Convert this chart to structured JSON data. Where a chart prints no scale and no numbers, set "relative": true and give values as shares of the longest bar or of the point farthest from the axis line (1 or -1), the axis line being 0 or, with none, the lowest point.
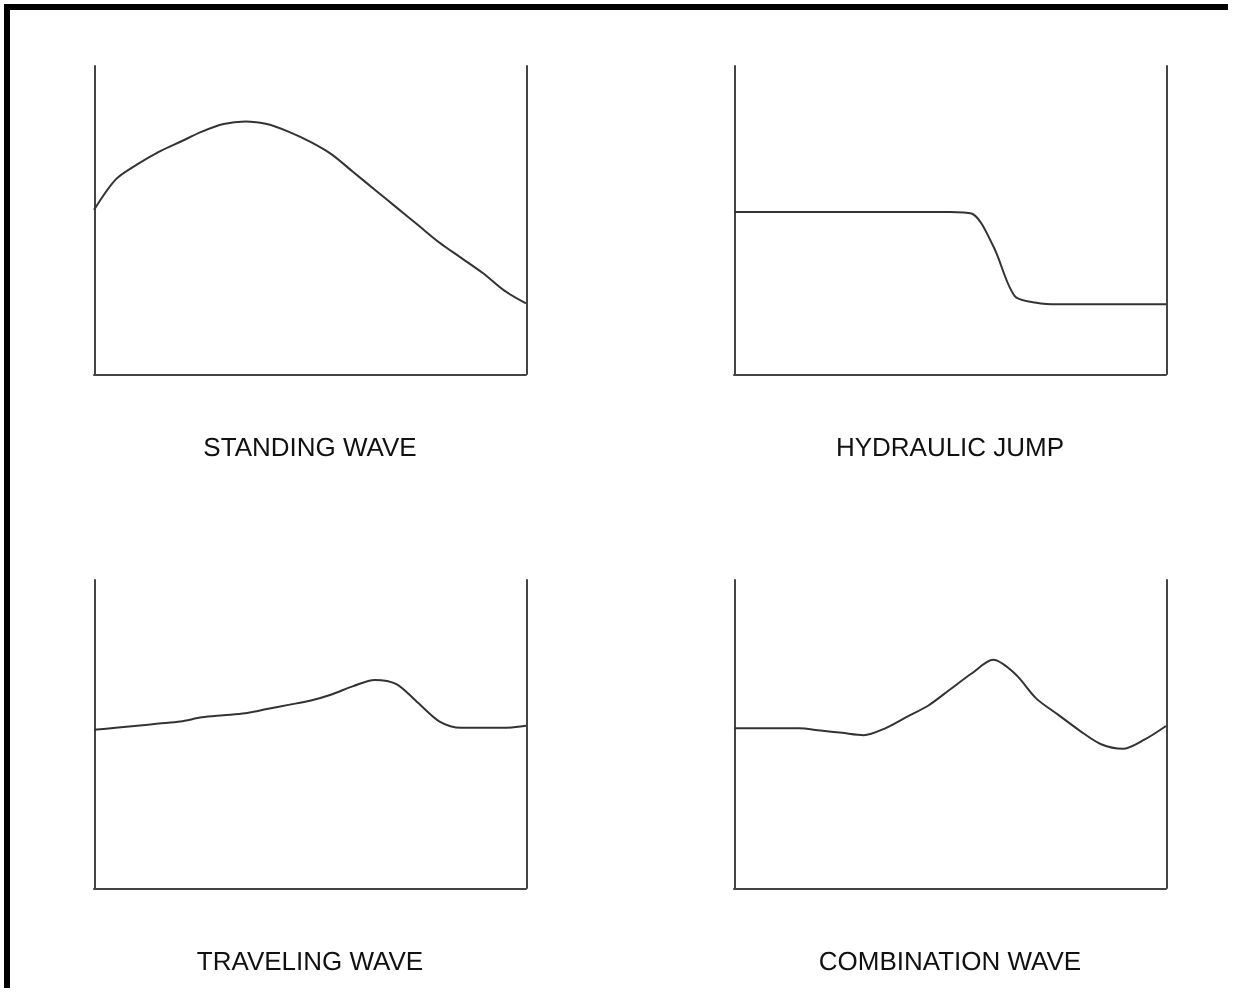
{
  "chart_data": [
    {
      "type": "line",
      "relative": true,
      "xlabel": "STANDING WAVE",
      "categories": [
        null,
        null,
        null,
        null,
        null,
        null,
        null,
        null,
        null,
        null,
        null,
        null,
        null,
        null,
        null,
        null,
        null,
        null,
        null,
        null,
        null
      ],
      "color": "#333333",
      "values": [
        0.65,
        0.77,
        0.83,
        0.88,
        0.92,
        0.96,
        0.99,
        1,
        0.99,
        0.96,
        0.92,
        0.87,
        0.8,
        0.73,
        0.66,
        0.59,
        0.52,
        0.46,
        0.4,
        0.33,
        0.28
      ]
    },
    {
      "type": "line",
      "relative": true,
      "xlabel": "HYDRAULIC JUMP",
      "categories": [
        null,
        null,
        null,
        null,
        null,
        null,
        null,
        null,
        null,
        null,
        null,
        null,
        null,
        null,
        null,
        null,
        null,
        null,
        null,
        null,
        null
      ],
      "color": "#333333",
      "values": [
        1,
        1,
        1,
        1,
        1,
        1,
        1,
        1,
        1,
        1,
        1,
        0.99,
        0.79,
        0.48,
        0.44,
        0.43,
        0.43,
        0.43,
        0.43,
        0.43,
        0.43
      ]
    },
    {
      "type": "line",
      "relative": true,
      "xlabel": "TRAVELING WAVE",
      "categories": [
        null,
        null,
        null,
        null,
        null,
        null,
        null,
        null,
        null,
        null,
        null,
        null,
        null,
        null,
        null,
        null,
        null,
        null,
        null,
        null,
        null
      ],
      "color": "#333333",
      "values": [
        0.76,
        0.77,
        0.78,
        0.79,
        0.8,
        0.82,
        0.83,
        0.84,
        0.86,
        0.88,
        0.9,
        0.93,
        0.97,
        1,
        0.98,
        0.89,
        0.8,
        0.77,
        0.77,
        0.77,
        0.78
      ]
    },
    {
      "type": "line",
      "relative": true,
      "xlabel": "COMBINATION WAVE",
      "categories": [
        null,
        null,
        null,
        null,
        null,
        null,
        null,
        null,
        null,
        null,
        null,
        null,
        null,
        null,
        null,
        null,
        null,
        null,
        null,
        null,
        null
      ],
      "color": "#333333",
      "values": [
        0.7,
        0.7,
        0.7,
        0.7,
        0.69,
        0.68,
        0.67,
        0.7,
        0.75,
        0.8,
        0.87,
        0.94,
        1,
        0.94,
        0.83,
        0.76,
        0.69,
        0.63,
        0.61,
        0.65,
        0.71
      ]
    }
  ]
}
